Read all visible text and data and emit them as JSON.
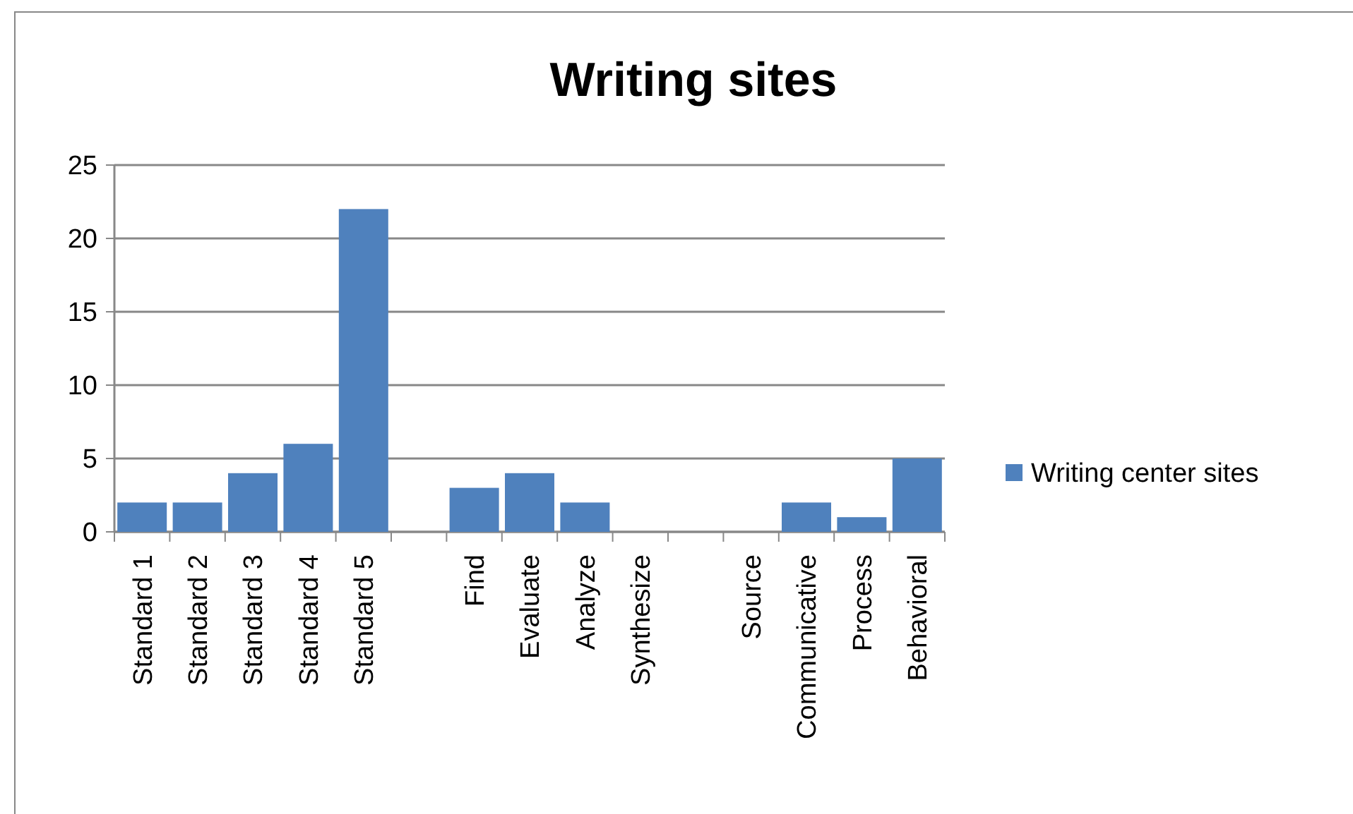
{
  "chart_data": {
    "type": "bar",
    "title": "Writing sites",
    "categories": [
      "Standard 1",
      "Standard 2",
      "Standard 3",
      "Standard 4",
      "Standard 5",
      null,
      "Find",
      "Evaluate",
      "Analyze",
      "Synthesize",
      null,
      "Source",
      "Communicative",
      "Process",
      "Behavioral"
    ],
    "series": [
      {
        "name": "Writing center sites",
        "color": "#4f81bd",
        "values": [
          2,
          2,
          4,
          6,
          22,
          null,
          3,
          4,
          2,
          0,
          null,
          0,
          2,
          1,
          5
        ]
      }
    ],
    "ylim": [
      0,
      25
    ],
    "yticks": [
      0,
      5,
      10,
      15,
      20,
      25
    ],
    "grid": "y",
    "legend": "right"
  }
}
